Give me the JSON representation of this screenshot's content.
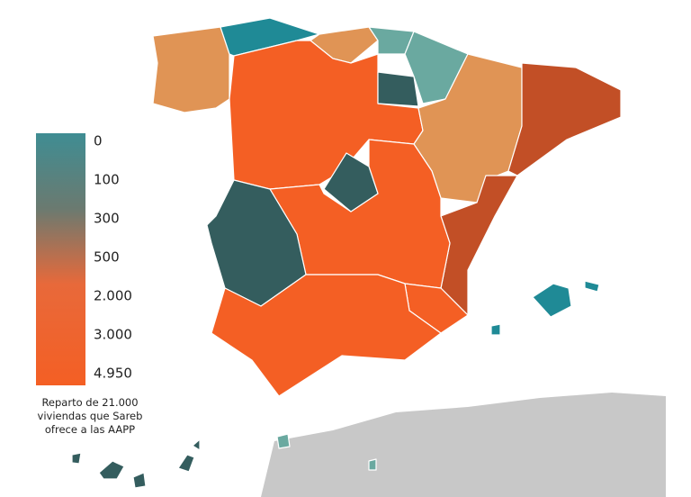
{
  "legend": {
    "labels": [
      "0",
      "100",
      "300",
      "500",
      "2.000",
      "3.000",
      "4.950"
    ],
    "caption": [
      "Reparto de 21.000",
      "viviendas que Sareb",
      "ofrece a las AAPP"
    ]
  }
}
